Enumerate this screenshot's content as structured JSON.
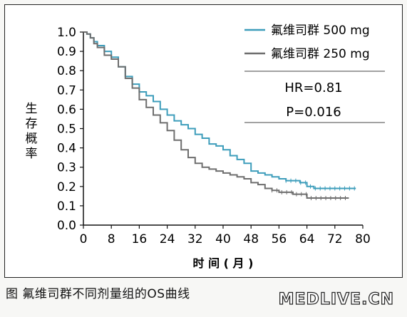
{
  "caption": "图 氟维司群不同剂量组的OS曲线",
  "watermark": "MEDLIVE.CN",
  "stats": {
    "hr": "HR=0.81",
    "p": "P=0.016"
  },
  "chart_data": {
    "type": "line",
    "title": "",
    "xlabel": "时 间 ( 月 )",
    "ylabel": "生存概率",
    "xlim": [
      0,
      80
    ],
    "ylim": [
      0,
      1.0
    ],
    "xticks": [
      0,
      8,
      16,
      24,
      32,
      40,
      48,
      56,
      64,
      72,
      80
    ],
    "yticks": [
      0,
      0.1,
      0.2,
      0.3,
      0.4,
      0.5,
      0.6,
      0.7,
      0.8,
      0.9,
      1.0
    ],
    "grid": false,
    "legend_position": "top-right",
    "series": [
      {
        "name": "氟维司群 500 mg",
        "color": "#3d9dbb",
        "points": [
          [
            0,
            1.0
          ],
          [
            1,
            0.99
          ],
          [
            2,
            0.97
          ],
          [
            3,
            0.95
          ],
          [
            4,
            0.93
          ],
          [
            6,
            0.9
          ],
          [
            8,
            0.87
          ],
          [
            10,
            0.82
          ],
          [
            12,
            0.77
          ],
          [
            14,
            0.73
          ],
          [
            16,
            0.69
          ],
          [
            18,
            0.67
          ],
          [
            20,
            0.64
          ],
          [
            22,
            0.6
          ],
          [
            24,
            0.57
          ],
          [
            26,
            0.54
          ],
          [
            28,
            0.52
          ],
          [
            30,
            0.5
          ],
          [
            32,
            0.47
          ],
          [
            34,
            0.45
          ],
          [
            36,
            0.42
          ],
          [
            38,
            0.41
          ],
          [
            40,
            0.39
          ],
          [
            42,
            0.36
          ],
          [
            44,
            0.34
          ],
          [
            46,
            0.32
          ],
          [
            48,
            0.28
          ],
          [
            50,
            0.27
          ],
          [
            52,
            0.26
          ],
          [
            54,
            0.25
          ],
          [
            56,
            0.24
          ],
          [
            58,
            0.23
          ],
          [
            60,
            0.23
          ],
          [
            62,
            0.22
          ],
          [
            64,
            0.2
          ],
          [
            66,
            0.19
          ],
          [
            70,
            0.19
          ],
          [
            74,
            0.19
          ],
          [
            78,
            0.19
          ]
        ]
      },
      {
        "name": "氟维司群 250 mg",
        "color": "#6e6e6e",
        "points": [
          [
            0,
            1.0
          ],
          [
            1,
            0.99
          ],
          [
            2,
            0.97
          ],
          [
            3,
            0.94
          ],
          [
            4,
            0.92
          ],
          [
            6,
            0.88
          ],
          [
            8,
            0.86
          ],
          [
            10,
            0.82
          ],
          [
            12,
            0.76
          ],
          [
            14,
            0.71
          ],
          [
            16,
            0.65
          ],
          [
            18,
            0.61
          ],
          [
            20,
            0.57
          ],
          [
            22,
            0.53
          ],
          [
            24,
            0.49
          ],
          [
            26,
            0.44
          ],
          [
            28,
            0.39
          ],
          [
            30,
            0.35
          ],
          [
            32,
            0.32
          ],
          [
            34,
            0.3
          ],
          [
            36,
            0.29
          ],
          [
            38,
            0.28
          ],
          [
            40,
            0.27
          ],
          [
            42,
            0.26
          ],
          [
            44,
            0.25
          ],
          [
            46,
            0.24
          ],
          [
            48,
            0.22
          ],
          [
            50,
            0.21
          ],
          [
            52,
            0.19
          ],
          [
            54,
            0.18
          ],
          [
            56,
            0.17
          ],
          [
            58,
            0.17
          ],
          [
            60,
            0.16
          ],
          [
            62,
            0.16
          ],
          [
            64,
            0.14
          ],
          [
            66,
            0.14
          ],
          [
            70,
            0.14
          ],
          [
            74,
            0.14
          ],
          [
            76,
            0.14
          ]
        ]
      }
    ]
  }
}
